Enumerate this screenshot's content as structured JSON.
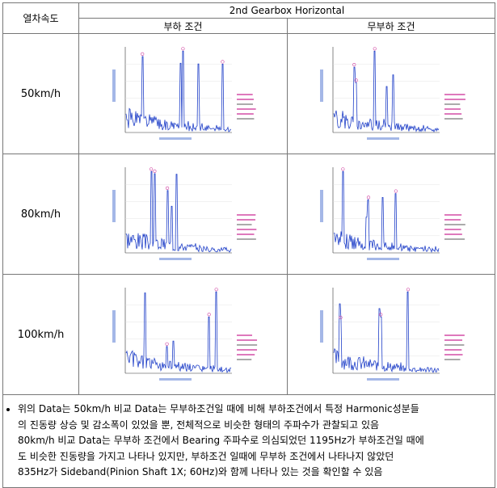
{
  "table": {
    "header": {
      "speed": "열차속도",
      "title": "2nd Gearbox Horizontal",
      "loaded": "부하 조건",
      "unloaded": "무부하 조건"
    },
    "rows": [
      "50km/h",
      "80km/h",
      "100km/h"
    ],
    "note": [
      "위의 Data는 50km/h 비교 Data는 무부하조건일 때에 비해 부하조건에서 특정 Harmonic성분들",
      "의 진동량 상승 및 감소폭이 있었을 뿐, 전체적으로 비슷한 형태의 주파수가 관찰되고 있음",
      "80km/h 비교 Data는 무부하 조건에서 Bearing 주파수로 의심되었던 1195Hz가 부하조건일 때에",
      "도 비슷한 진동량을 가지고 나타나 있지만, 부하조건 일때에 무부하 조건에서 나타나지 않았던",
      "835Hz가 Sideband(Pinion Shaft 1X; 60Hz)와 함께 나타나 있는 것을 확인할 수 있음"
    ]
  }
}
